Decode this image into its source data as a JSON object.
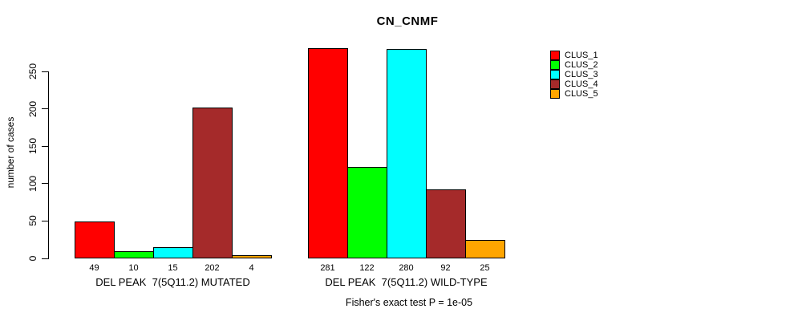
{
  "chart_data": {
    "type": "bar",
    "title": "CN_CNMF",
    "ylabel": "number of cases",
    "xlabel": "",
    "yticks": [
      0,
      50,
      100,
      150,
      200,
      250
    ],
    "ylim": [
      0,
      285
    ],
    "grid": false,
    "legend_position": "top-right",
    "bar_value_labels": true,
    "groups": [
      {
        "label": "DEL PEAK  7(5Q11.2) MUTATED",
        "values": [
          49,
          10,
          15,
          202,
          4
        ]
      },
      {
        "label": "DEL PEAK  7(5Q11.2) WILD-TYPE",
        "values": [
          281,
          122,
          280,
          92,
          25
        ]
      }
    ],
    "series": [
      {
        "name": "CLUS_1",
        "color": "#FF0000",
        "values": [
          49,
          281
        ]
      },
      {
        "name": "CLUS_2",
        "color": "#00FF00",
        "values": [
          10,
          122
        ]
      },
      {
        "name": "CLUS_3",
        "color": "#00FFFF",
        "values": [
          15,
          280
        ]
      },
      {
        "name": "CLUS_4",
        "color": "#A52A2A",
        "values": [
          202,
          92
        ]
      },
      {
        "name": "CLUS_5",
        "color": "#FFA500",
        "values": [
          4,
          25
        ]
      }
    ],
    "annotation": "Fisher's exact test P = 1e-05"
  }
}
